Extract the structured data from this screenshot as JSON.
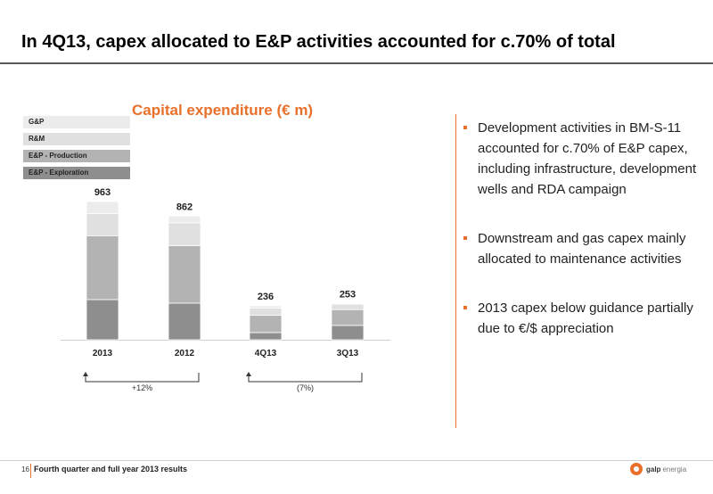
{
  "slide": {
    "title": "In 4Q13, capex allocated to E&P activities accounted for c.70% of total"
  },
  "bullets": [
    "Development activities in BM-S-11 accounted for c.70% of E&P capex, including infrastructure, development wells and RDA campaign",
    "Downstream and gas capex mainly allocated to maintenance activities",
    "2013 capex below guidance partially due to €/$ appreciation"
  ],
  "footer": {
    "page_number": "16",
    "text": "Fourth quarter and full year 2013 results",
    "logo_bold": "galp",
    "logo_light": "energia"
  },
  "colors": {
    "accent": "#e8702a",
    "gp": "#ececec",
    "rm": "#e0e0e0",
    "ep_production": "#b3b3b3",
    "ep_exploration": "#8e8e8e"
  },
  "chart_data": {
    "type": "bar",
    "stacked": true,
    "title": "Capital expenditure (€ m)",
    "legend_position": "top-left",
    "categories": [
      "2013",
      "2012",
      "4Q13",
      "3Q13"
    ],
    "totals": [
      963,
      862,
      236,
      253
    ],
    "series": [
      {
        "name": "E&P - Exploration",
        "values": [
          280,
          255,
          50,
          100
        ]
      },
      {
        "name": "E&P - Production",
        "values": [
          445,
          400,
          120,
          110
        ]
      },
      {
        "name": "R&M",
        "values": [
          155,
          160,
          50,
          38
        ]
      },
      {
        "name": "G&P",
        "values": [
          83,
          47,
          16,
          5
        ]
      }
    ],
    "comparisons": [
      {
        "from": "2013",
        "to": "2012",
        "label": "+12%"
      },
      {
        "from": "4Q13",
        "to": "3Q13",
        "label": "(7%)"
      }
    ]
  }
}
